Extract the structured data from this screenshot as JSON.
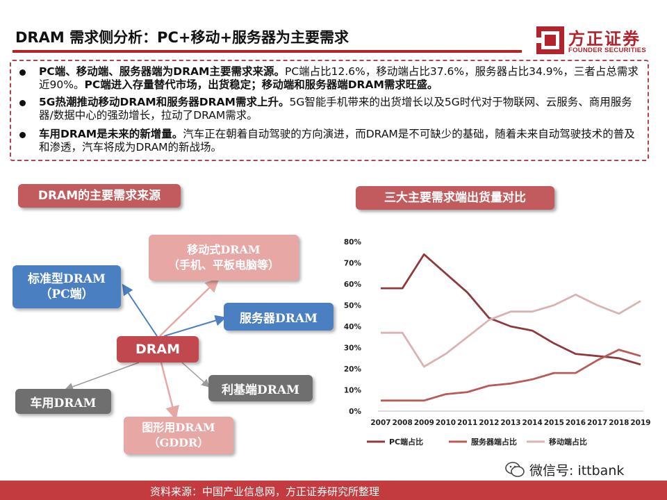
{
  "header": {
    "title": "DRAM 需求侧分析：PC+移动+服务器为主要需求",
    "logo_cn": "方正证券",
    "logo_en": "FOUNDER SECURITIES"
  },
  "summary": {
    "bullets": [
      {
        "bold1": "PC端、移动端、服务器端为DRAM主要需求来源。",
        "text1": "PC端占比12.6%，移动端占比37.6%，服务器占比34.9%，三者占总需求近90%。",
        "bold2": "PC端进入存量替代市场，出货稳定；移动端和服务器端DRAM需求旺盛。"
      },
      {
        "bold1": "5G热潮推动移动DRAM和服务器DRAM需求上升。",
        "text1": "5G智能手机带来的出货增长以及5G时代对于物联网、云服务、商用服务器/数据中心的强劲增长，拉动了DRAM需求。"
      },
      {
        "bold1": "车用DRAM是未来的新增量。",
        "text1": "汽车正在朝着自动驾驶的方向演进，而DRAM是不可缺少的基础，随着未来自动驾驶技术的普及和渗透，汽车将成为DRAM的新战场。"
      }
    ]
  },
  "diagram": {
    "tag": "DRAM的主要需求来源",
    "center": "DRAM",
    "standard": {
      "line1": "标准型DRAM",
      "line2": "（PC端）"
    },
    "mobile": {
      "line1": "移动式DRAM",
      "line2": "（手机、平板电脑等）"
    },
    "server": "服务器DRAM",
    "car": "车用DRAM",
    "niche": "利基端DRAM",
    "graphics": {
      "line1": "图形用DRAM",
      "line2": "（GDDR）"
    }
  },
  "chart_tag": "三大主要需求端出货量对比",
  "chart_data": {
    "type": "line",
    "title": "",
    "xlabel": "",
    "ylabel": "",
    "categories": [
      "2007",
      "2008",
      "2009",
      "2010",
      "2011",
      "2012",
      "2013",
      "2014",
      "2015",
      "2016",
      "2017",
      "2018",
      "2019"
    ],
    "ylim": [
      0,
      0.8
    ],
    "yticks": [
      "0%",
      "10%",
      "20%",
      "30%",
      "40%",
      "50%",
      "60%",
      "70%",
      "80%"
    ],
    "grid": false,
    "legend_position": "bottom",
    "series": [
      {
        "name": "PC端占比",
        "color": "#8e3a3c",
        "values": [
          0.58,
          0.58,
          0.74,
          0.65,
          0.56,
          0.44,
          0.4,
          0.38,
          0.32,
          0.27,
          0.26,
          0.25,
          0.22
        ]
      },
      {
        "name": "服务器端占比",
        "color": "#b85a58",
        "values": [
          0.05,
          0.05,
          0.05,
          0.08,
          0.09,
          0.12,
          0.13,
          0.15,
          0.18,
          0.18,
          0.24,
          0.29,
          0.26
        ]
      },
      {
        "name": "移动端占比",
        "color": "#d8b3b2",
        "values": [
          0.37,
          0.37,
          0.21,
          0.27,
          0.35,
          0.43,
          0.47,
          0.47,
          0.5,
          0.55,
          0.5,
          0.46,
          0.52
        ]
      }
    ]
  },
  "footer": {
    "source": "资料来源：中国产业信息网，方正证券研究所整理",
    "wechat": "微信号: ittbank"
  },
  "colors": {
    "accent": "#b3232b",
    "tag": "#c25b5e",
    "blue_node": "#4a7fc1",
    "pink_node": "#e6a7a5",
    "gray_node": "#6f6f6f"
  }
}
